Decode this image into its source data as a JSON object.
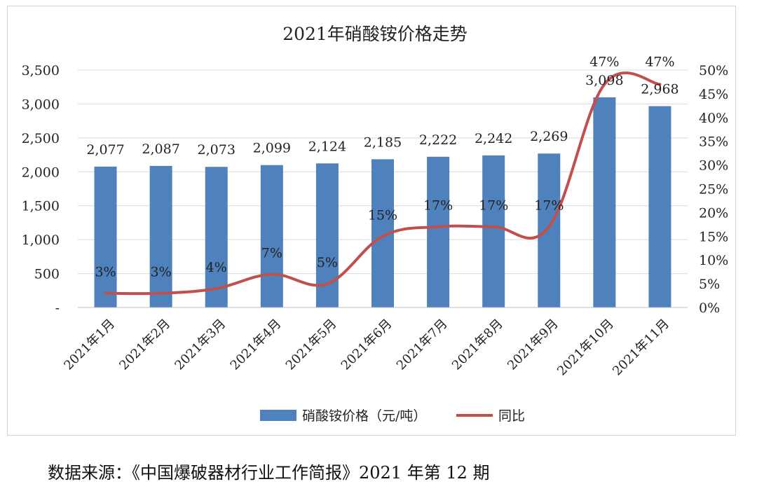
{
  "chart_data": {
    "type": "bar",
    "title": "2021年硝酸铵价格走势",
    "categories": [
      "2021年1月",
      "2021年2月",
      "2021年3月",
      "2021年4月",
      "2021年5月",
      "2021年6月",
      "2021年7月",
      "2021年8月",
      "2021年9月",
      "2021年10月",
      "2021年11月"
    ],
    "series": [
      {
        "name": "硝酸铵价格（元/吨）",
        "kind": "bar",
        "axis": "left",
        "color": "#4f81bd",
        "values": [
          2077,
          2087,
          2073,
          2099,
          2124,
          2185,
          2222,
          2242,
          2269,
          3098,
          2968
        ],
        "labels": [
          "2,077",
          "2,087",
          "2,073",
          "2,099",
          "2,124",
          "2,185",
          "2,222",
          "2,242",
          "2,269",
          "3,098",
          "2,968"
        ]
      },
      {
        "name": "同比",
        "kind": "line",
        "axis": "right",
        "color": "#c0504d",
        "values": [
          3,
          3,
          4,
          7,
          5,
          15,
          17,
          17,
          17,
          47,
          47
        ],
        "labels": [
          "3%",
          "3%",
          "4%",
          "7%",
          "5%",
          "15%",
          "17%",
          "17%",
          "17%",
          "47%",
          "47%"
        ]
      }
    ],
    "y_left": {
      "range": [
        0,
        3500
      ],
      "ticks": [
        0,
        500,
        1000,
        1500,
        2000,
        2500,
        3000,
        3500
      ],
      "tick_labels": [
        "-",
        "500",
        "1,000",
        "1,500",
        "2,000",
        "2,500",
        "3,000",
        "3,500"
      ]
    },
    "y_right": {
      "range": [
        0,
        50
      ],
      "ticks": [
        0,
        5,
        10,
        15,
        20,
        25,
        30,
        35,
        40,
        45,
        50
      ],
      "tick_labels": [
        "0%",
        "5%",
        "10%",
        "15%",
        "20%",
        "25%",
        "30%",
        "35%",
        "40%",
        "45%",
        "50%"
      ]
    },
    "grid": true,
    "legend_position": "bottom"
  },
  "source_text": "数据来源：《中国爆破器材行业工作简报》2021 年第 12 期"
}
